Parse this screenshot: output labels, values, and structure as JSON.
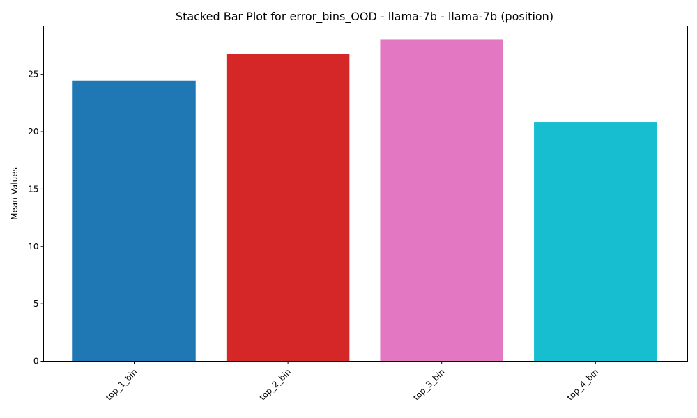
{
  "chart_data": {
    "type": "bar",
    "title": "Stacked Bar Plot for error_bins_OOD - llama-7b - llama-7b (position)",
    "xlabel": "",
    "ylabel": "Mean Values",
    "categories": [
      "top_1_bin",
      "top_2_bin",
      "top_3_bin",
      "top_4_bin"
    ],
    "values": [
      24.45,
      26.75,
      28.05,
      20.85
    ],
    "colors": [
      "#1f77b4",
      "#d62728",
      "#e377c2",
      "#17becf"
    ],
    "ylim": [
      0,
      29.2
    ],
    "yticks": [
      0,
      5,
      10,
      15,
      20,
      25
    ],
    "grid": false,
    "legend": "none"
  }
}
